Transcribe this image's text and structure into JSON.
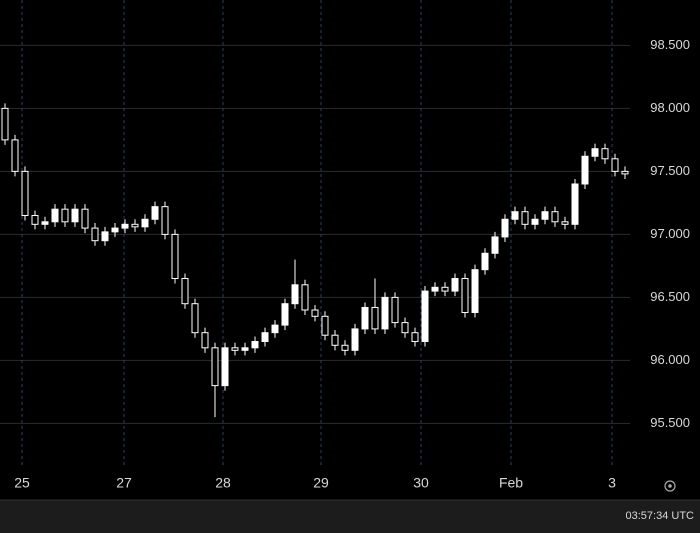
{
  "chart_data": {
    "type": "candlestick",
    "open": [
      98.0,
      97.75,
      97.5,
      97.15,
      97.08,
      97.1,
      97.2,
      97.1,
      97.2,
      97.05,
      96.95,
      97.02,
      97.05,
      97.08,
      97.06,
      97.12,
      97.22,
      97.0,
      96.65,
      96.45,
      96.22,
      96.1,
      95.8,
      96.1,
      96.08,
      96.1,
      96.15,
      96.22,
      96.28,
      96.45,
      96.6,
      96.4,
      96.35,
      96.2,
      96.12,
      96.08,
      96.25,
      96.42,
      96.25,
      96.5,
      96.3,
      96.22,
      96.15,
      96.55,
      96.58,
      96.55,
      96.65,
      96.38,
      96.72,
      96.85,
      96.98,
      97.12,
      97.18,
      97.08,
      97.12,
      97.18,
      97.1,
      97.08,
      97.4,
      97.62,
      97.68,
      97.6,
      97.5
    ],
    "high": [
      98.04,
      97.79,
      97.54,
      97.19,
      97.14,
      97.24,
      97.24,
      97.24,
      97.24,
      97.09,
      97.06,
      97.09,
      97.12,
      97.12,
      97.16,
      97.26,
      97.26,
      97.04,
      96.69,
      96.49,
      96.26,
      96.14,
      96.14,
      96.14,
      96.14,
      96.19,
      96.26,
      96.32,
      96.49,
      96.8,
      96.64,
      96.44,
      96.39,
      96.24,
      96.16,
      96.29,
      96.46,
      96.65,
      96.54,
      96.54,
      96.34,
      96.26,
      96.59,
      96.62,
      96.62,
      96.69,
      96.69,
      96.76,
      96.89,
      97.02,
      97.16,
      97.22,
      97.22,
      97.16,
      97.22,
      97.22,
      97.14,
      97.44,
      97.66,
      97.72,
      97.72,
      97.64,
      97.54
    ],
    "low": [
      97.71,
      97.46,
      97.11,
      97.04,
      97.04,
      97.06,
      97.06,
      97.06,
      97.01,
      96.91,
      96.91,
      96.98,
      97.01,
      97.02,
      97.02,
      97.08,
      96.96,
      96.61,
      96.41,
      96.18,
      96.06,
      95.55,
      95.76,
      96.04,
      96.04,
      96.06,
      96.11,
      96.18,
      96.24,
      96.41,
      96.36,
      96.31,
      96.16,
      96.08,
      96.04,
      96.04,
      96.21,
      96.21,
      96.21,
      96.26,
      96.18,
      96.11,
      96.11,
      96.51,
      96.51,
      96.51,
      96.34,
      96.34,
      96.68,
      96.81,
      96.94,
      97.08,
      97.04,
      97.04,
      97.08,
      97.06,
      97.04,
      97.04,
      97.36,
      97.58,
      97.56,
      97.46,
      97.44
    ],
    "close": [
      97.75,
      97.5,
      97.15,
      97.08,
      97.1,
      97.2,
      97.1,
      97.2,
      97.05,
      96.95,
      97.02,
      97.05,
      97.08,
      97.06,
      97.12,
      97.22,
      97.0,
      96.65,
      96.45,
      96.22,
      96.1,
      95.8,
      96.1,
      96.08,
      96.1,
      96.15,
      96.22,
      96.28,
      96.45,
      96.6,
      96.4,
      96.35,
      96.2,
      96.12,
      96.08,
      96.25,
      96.42,
      96.25,
      96.5,
      96.3,
      96.22,
      96.15,
      96.55,
      96.58,
      96.55,
      96.65,
      96.38,
      96.72,
      96.85,
      96.98,
      97.12,
      97.18,
      97.08,
      97.12,
      97.18,
      97.1,
      97.08,
      97.4,
      97.62,
      97.68,
      97.6,
      97.5,
      97.48
    ],
    "up_color": "#ffffff",
    "down_color": "#000000",
    "wick_color": "#ffffff",
    "xlim": [
      -0.5,
      62.5
    ],
    "xticks": [
      {
        "value": 1.7,
        "label": "25"
      },
      {
        "value": 11.9,
        "label": "27"
      },
      {
        "value": 21.8,
        "label": "28"
      },
      {
        "value": 31.6,
        "label": "29"
      },
      {
        "value": 41.6,
        "label": "30"
      },
      {
        "value": 50.6,
        "label": "Feb"
      },
      {
        "value": 60.7,
        "label": "3"
      }
    ],
    "ylim": [
      95.17,
      98.86
    ],
    "yticks": [
      {
        "value": 95.5,
        "label": "95.500"
      },
      {
        "value": 96,
        "label": "96.000"
      },
      {
        "value": 96.5,
        "label": "96.500"
      },
      {
        "value": 97,
        "label": "97.000"
      },
      {
        "value": 97.5,
        "label": "97.500"
      },
      {
        "value": 98,
        "label": "98.000"
      },
      {
        "value": 98.5,
        "label": "98.500"
      }
    ],
    "grid": true,
    "footer_time": "03:57:34 UTC"
  }
}
